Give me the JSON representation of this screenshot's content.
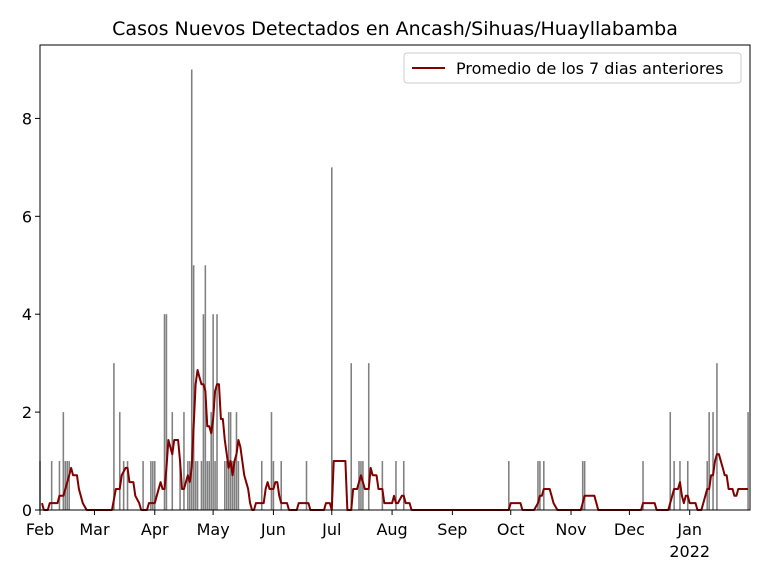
{
  "chart_data": {
    "type": "bar",
    "title": "Casos Nuevos Detectados en Ancash/Sihuas/Huayllabamba",
    "xlabel": "",
    "ylabel": "",
    "x_start": "2021-02-01",
    "x_end": "2022-01-31",
    "ylim": [
      0,
      9.5
    ],
    "yticks": [
      0,
      2,
      4,
      6,
      8
    ],
    "xticks": [
      {
        "label": "Feb",
        "date": "2021-02-01"
      },
      {
        "label": "Mar",
        "date": "2021-03-01"
      },
      {
        "label": "Apr",
        "date": "2021-04-01"
      },
      {
        "label": "May",
        "date": "2021-05-01"
      },
      {
        "label": "Jun",
        "date": "2021-06-01"
      },
      {
        "label": "Jul",
        "date": "2021-07-01"
      },
      {
        "label": "Aug",
        "date": "2021-08-01"
      },
      {
        "label": "Sep",
        "date": "2021-09-01"
      },
      {
        "label": "Oct",
        "date": "2021-10-01"
      },
      {
        "label": "Nov",
        "date": "2021-11-01"
      },
      {
        "label": "Dec",
        "date": "2021-12-01"
      },
      {
        "label": "Jan",
        "sublabel": "2022",
        "date": "2022-01-01"
      }
    ],
    "grid": false,
    "legend_position": "top-right",
    "bar_color": "#808080",
    "line_color": "#800000",
    "series": [
      {
        "kind": "bar",
        "name": "",
        "points": [
          [
            "2021-02-01",
            1
          ],
          [
            "2021-02-07",
            1
          ],
          [
            "2021-02-11",
            1
          ],
          [
            "2021-02-13",
            2
          ],
          [
            "2021-02-14",
            1
          ],
          [
            "2021-02-15",
            1
          ],
          [
            "2021-02-16",
            1
          ],
          [
            "2021-03-11",
            3
          ],
          [
            "2021-03-14",
            2
          ],
          [
            "2021-03-16",
            1
          ],
          [
            "2021-03-18",
            1
          ],
          [
            "2021-03-26",
            1
          ],
          [
            "2021-03-30",
            1
          ],
          [
            "2021-03-31",
            1
          ],
          [
            "2021-04-01",
            1
          ],
          [
            "2021-04-06",
            4
          ],
          [
            "2021-04-07",
            4
          ],
          [
            "2021-04-10",
            2
          ],
          [
            "2021-04-14",
            1
          ],
          [
            "2021-04-16",
            2
          ],
          [
            "2021-04-18",
            1
          ],
          [
            "2021-04-19",
            1
          ],
          [
            "2021-04-20",
            9
          ],
          [
            "2021-04-21",
            5
          ],
          [
            "2021-04-22",
            1
          ],
          [
            "2021-04-23",
            1
          ],
          [
            "2021-04-25",
            1
          ],
          [
            "2021-04-26",
            4
          ],
          [
            "2021-04-27",
            5
          ],
          [
            "2021-04-28",
            1
          ],
          [
            "2021-04-29",
            1
          ],
          [
            "2021-04-30",
            2
          ],
          [
            "2021-05-01",
            4
          ],
          [
            "2021-05-02",
            1
          ],
          [
            "2021-05-03",
            4
          ],
          [
            "2021-05-07",
            1
          ],
          [
            "2021-05-08",
            1
          ],
          [
            "2021-05-09",
            2
          ],
          [
            "2021-05-10",
            2
          ],
          [
            "2021-05-11",
            1
          ],
          [
            "2021-05-12",
            1
          ],
          [
            "2021-05-13",
            2
          ],
          [
            "2021-05-14",
            1
          ],
          [
            "2021-05-26",
            1
          ],
          [
            "2021-05-31",
            2
          ],
          [
            "2021-06-01",
            1
          ],
          [
            "2021-06-05",
            1
          ],
          [
            "2021-06-18",
            1
          ],
          [
            "2021-07-01",
            7
          ],
          [
            "2021-07-11",
            3
          ],
          [
            "2021-07-15",
            1
          ],
          [
            "2021-07-16",
            1
          ],
          [
            "2021-07-17",
            1
          ],
          [
            "2021-07-20",
            3
          ],
          [
            "2021-07-27",
            1
          ],
          [
            "2021-08-03",
            1
          ],
          [
            "2021-08-07",
            1
          ],
          [
            "2021-09-30",
            1
          ],
          [
            "2021-10-15",
            1
          ],
          [
            "2021-10-16",
            1
          ],
          [
            "2021-10-18",
            1
          ],
          [
            "2021-11-07",
            1
          ],
          [
            "2021-11-08",
            1
          ],
          [
            "2021-12-08",
            1
          ],
          [
            "2021-12-22",
            2
          ],
          [
            "2021-12-24",
            1
          ],
          [
            "2021-12-27",
            1
          ],
          [
            "2021-12-31",
            1
          ],
          [
            "2022-01-10",
            1
          ],
          [
            "2022-01-11",
            2
          ],
          [
            "2022-01-13",
            2
          ],
          [
            "2022-01-15",
            3
          ],
          [
            "2022-01-31",
            2
          ]
        ]
      },
      {
        "kind": "line",
        "name": "Promedio de los 7 dias anteriores",
        "points": [
          [
            "2021-02-02",
            0.14
          ],
          [
            "2021-02-03",
            0
          ],
          [
            "2021-02-05",
            0
          ],
          [
            "2021-02-06",
            0.14
          ],
          [
            "2021-02-10",
            0.14
          ],
          [
            "2021-02-11",
            0.29
          ],
          [
            "2021-02-13",
            0.29
          ],
          [
            "2021-02-14",
            0.43
          ],
          [
            "2021-02-15",
            0.57
          ],
          [
            "2021-02-16",
            0.71
          ],
          [
            "2021-02-17",
            0.86
          ],
          [
            "2021-02-18",
            0.71
          ],
          [
            "2021-02-20",
            0.71
          ],
          [
            "2021-02-21",
            0.43
          ],
          [
            "2021-02-23",
            0.14
          ],
          [
            "2021-02-25",
            0
          ],
          [
            "2021-03-10",
            0
          ],
          [
            "2021-03-12",
            0.43
          ],
          [
            "2021-03-14",
            0.43
          ],
          [
            "2021-03-15",
            0.71
          ],
          [
            "2021-03-17",
            0.86
          ],
          [
            "2021-03-18",
            0.86
          ],
          [
            "2021-03-19",
            0.57
          ],
          [
            "2021-03-21",
            0.57
          ],
          [
            "2021-03-22",
            0.29
          ],
          [
            "2021-03-24",
            0.14
          ],
          [
            "2021-03-25",
            0
          ],
          [
            "2021-03-28",
            0
          ],
          [
            "2021-03-29",
            0.14
          ],
          [
            "2021-04-01",
            0.14
          ],
          [
            "2021-04-03",
            0.43
          ],
          [
            "2021-04-04",
            0.57
          ],
          [
            "2021-04-05",
            0.43
          ],
          [
            "2021-04-06",
            0.43
          ],
          [
            "2021-04-07",
            0.86
          ],
          [
            "2021-04-08",
            1.43
          ],
          [
            "2021-04-10",
            1.14
          ],
          [
            "2021-04-11",
            1.43
          ],
          [
            "2021-04-13",
            1.43
          ],
          [
            "2021-04-14",
            1.0
          ],
          [
            "2021-04-15",
            0.43
          ],
          [
            "2021-04-16",
            0.43
          ],
          [
            "2021-04-18",
            0.71
          ],
          [
            "2021-04-19",
            0.57
          ],
          [
            "2021-04-20",
            0.86
          ],
          [
            "2021-04-21",
            1.71
          ],
          [
            "2021-04-22",
            2.57
          ],
          [
            "2021-04-23",
            2.86
          ],
          [
            "2021-04-24",
            2.71
          ],
          [
            "2021-04-25",
            2.57
          ],
          [
            "2021-04-26",
            2.57
          ],
          [
            "2021-04-27",
            2.43
          ],
          [
            "2021-04-28",
            1.71
          ],
          [
            "2021-04-29",
            1.71
          ],
          [
            "2021-04-30",
            1.57
          ],
          [
            "2021-05-01",
            1.86
          ],
          [
            "2021-05-02",
            2.43
          ],
          [
            "2021-05-03",
            2.57
          ],
          [
            "2021-05-04",
            2.57
          ],
          [
            "2021-05-05",
            1.86
          ],
          [
            "2021-05-06",
            1.86
          ],
          [
            "2021-05-07",
            1.43
          ],
          [
            "2021-05-08",
            1.14
          ],
          [
            "2021-05-09",
            0.86
          ],
          [
            "2021-05-10",
            1.0
          ],
          [
            "2021-05-11",
            0.71
          ],
          [
            "2021-05-12",
            1.0
          ],
          [
            "2021-05-13",
            1.14
          ],
          [
            "2021-05-14",
            1.43
          ],
          [
            "2021-05-15",
            1.29
          ],
          [
            "2021-05-16",
            1.0
          ],
          [
            "2021-05-17",
            0.71
          ],
          [
            "2021-05-19",
            0.43
          ],
          [
            "2021-05-20",
            0.14
          ],
          [
            "2021-05-21",
            0
          ],
          [
            "2021-05-22",
            0
          ],
          [
            "2021-05-23",
            0.14
          ],
          [
            "2021-05-27",
            0.14
          ],
          [
            "2021-05-28",
            0.43
          ],
          [
            "2021-05-29",
            0.57
          ],
          [
            "2021-05-30",
            0.43
          ],
          [
            "2021-06-01",
            0.43
          ],
          [
            "2021-06-02",
            0.57
          ],
          [
            "2021-06-03",
            0.57
          ],
          [
            "2021-06-04",
            0.29
          ],
          [
            "2021-06-05",
            0.14
          ],
          [
            "2021-06-08",
            0.14
          ],
          [
            "2021-06-09",
            0
          ],
          [
            "2021-06-13",
            0
          ],
          [
            "2021-06-14",
            0.14
          ],
          [
            "2021-06-19",
            0.14
          ],
          [
            "2021-06-20",
            0
          ],
          [
            "2021-06-26",
            0
          ],
          [
            "2021-06-27",
            0
          ],
          [
            "2021-06-28",
            0.14
          ],
          [
            "2021-06-30",
            0.14
          ],
          [
            "2021-07-01",
            0
          ],
          [
            "2021-07-02",
            1.0
          ],
          [
            "2021-07-08",
            1.0
          ],
          [
            "2021-07-09",
            0
          ],
          [
            "2021-07-11",
            0
          ],
          [
            "2021-07-12",
            0.43
          ],
          [
            "2021-07-14",
            0.43
          ],
          [
            "2021-07-15",
            0.57
          ],
          [
            "2021-07-16",
            0.71
          ],
          [
            "2021-07-17",
            0.57
          ],
          [
            "2021-07-18",
            0.43
          ],
          [
            "2021-07-20",
            0.43
          ],
          [
            "2021-07-21",
            0.86
          ],
          [
            "2021-07-22",
            0.71
          ],
          [
            "2021-07-24",
            0.71
          ],
          [
            "2021-07-25",
            0.43
          ],
          [
            "2021-07-27",
            0.43
          ],
          [
            "2021-07-28",
            0.14
          ],
          [
            "2021-08-01",
            0.14
          ],
          [
            "2021-08-02",
            0.29
          ],
          [
            "2021-08-03",
            0.14
          ],
          [
            "2021-08-04",
            0.14
          ],
          [
            "2021-08-06",
            0.29
          ],
          [
            "2021-08-07",
            0.29
          ],
          [
            "2021-08-08",
            0.14
          ],
          [
            "2021-08-10",
            0.14
          ],
          [
            "2021-08-11",
            0
          ],
          [
            "2021-09-30",
            0
          ],
          [
            "2021-10-01",
            0.14
          ],
          [
            "2021-10-06",
            0.14
          ],
          [
            "2021-10-07",
            0
          ],
          [
            "2021-10-13",
            0
          ],
          [
            "2021-10-15",
            0.14
          ],
          [
            "2021-10-16",
            0.29
          ],
          [
            "2021-10-17",
            0.29
          ],
          [
            "2021-10-18",
            0.43
          ],
          [
            "2021-10-21",
            0.43
          ],
          [
            "2021-10-22",
            0.29
          ],
          [
            "2021-10-23",
            0.14
          ],
          [
            "2021-10-25",
            0
          ],
          [
            "2021-11-06",
            0
          ],
          [
            "2021-11-07",
            0.14
          ],
          [
            "2021-11-08",
            0.29
          ],
          [
            "2021-11-13",
            0.29
          ],
          [
            "2021-11-15",
            0
          ],
          [
            "2021-12-07",
            0
          ],
          [
            "2021-12-08",
            0.14
          ],
          [
            "2021-12-14",
            0.14
          ],
          [
            "2021-12-15",
            0
          ],
          [
            "2021-12-21",
            0
          ],
          [
            "2021-12-23",
            0.29
          ],
          [
            "2021-12-24",
            0.43
          ],
          [
            "2021-12-26",
            0.43
          ],
          [
            "2021-12-27",
            0.57
          ],
          [
            "2021-12-28",
            0.29
          ],
          [
            "2021-12-29",
            0.14
          ],
          [
            "2021-12-30",
            0.29
          ],
          [
            "2021-12-31",
            0.29
          ],
          [
            "2022-01-01",
            0.14
          ],
          [
            "2022-01-04",
            0.14
          ],
          [
            "2022-01-05",
            0
          ],
          [
            "2022-01-07",
            0
          ],
          [
            "2022-01-08",
            0.14
          ],
          [
            "2022-01-10",
            0.43
          ],
          [
            "2022-01-11",
            0.43
          ],
          [
            "2022-01-12",
            0.71
          ],
          [
            "2022-01-13",
            0.71
          ],
          [
            "2022-01-14",
            1.0
          ],
          [
            "2022-01-15",
            1.14
          ],
          [
            "2022-01-16",
            1.14
          ],
          [
            "2022-01-17",
            1.0
          ],
          [
            "2022-01-18",
            0.86
          ],
          [
            "2022-01-19",
            0.71
          ],
          [
            "2022-01-20",
            0.71
          ],
          [
            "2022-01-21",
            0.43
          ],
          [
            "2022-01-23",
            0.43
          ],
          [
            "2022-01-24",
            0.29
          ],
          [
            "2022-01-25",
            0.29
          ],
          [
            "2022-01-26",
            0.43
          ],
          [
            "2022-01-31",
            0.43
          ]
        ]
      }
    ]
  }
}
